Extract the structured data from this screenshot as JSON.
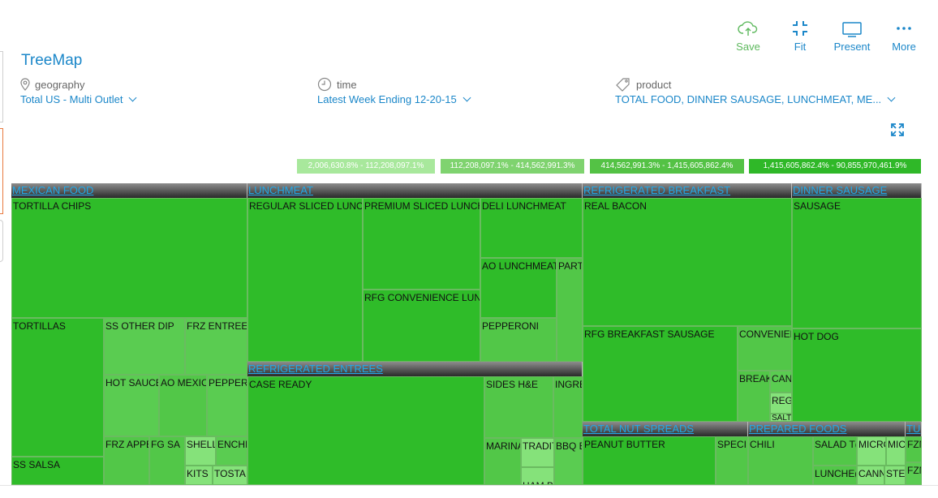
{
  "toolbar": {
    "save_label": "Save",
    "fit_label": "Fit",
    "present_label": "Present",
    "more_label": "More"
  },
  "page": {
    "title": "TreeMap"
  },
  "filters": {
    "geography": {
      "label": "geography",
      "value": "Total US - Multi Outlet",
      "icon": "location-pin-icon"
    },
    "time": {
      "label": "time",
      "value": "Latest Week Ending 12-20-15",
      "icon": "clock-icon"
    },
    "product": {
      "label": "product",
      "value": "TOTAL FOOD, DINNER SAUSAGE, LUNCHMEAT, ME...",
      "icon": "tag-icon"
    }
  },
  "legend": [
    {
      "label": "2,006,630.8% - 112,208,097.1%",
      "color": "#a8e89c"
    },
    {
      "label": "112,208,097.1% - 414,562,991.3%",
      "color": "#7fd36f"
    },
    {
      "label": "414,562,991.3% - 1,415,605,862.4%",
      "color": "#54c245"
    },
    {
      "label": "1,415,605,862.4% - 90,855,970,461.9%",
      "color": "#2fb828"
    }
  ],
  "colors": {
    "accent": "#1b87c9",
    "save": "#5cb85c",
    "shade_1": "#2fbc29",
    "shade_2": "#5acc51",
    "shade_3": "#52c748",
    "shade_4": "#85e27a"
  },
  "treemap": {
    "groups": {
      "mexican": "MEXICAN FOOD",
      "lunchmeat": "LUNCHMEAT",
      "breakfast": "REFRIGERATED BREAKFAST",
      "sausage": "DINNER SAUSAGE",
      "entrees": "REFRIGERATED ENTREES",
      "nut": "TOTAL NUT SPREADS",
      "prepared": "PREPARED FOODS",
      "tu": "TU"
    },
    "cells": {
      "tortilla_chips": "TORTILLA CHIPS",
      "tortillas": "TORTILLAS",
      "ss_salsa": "SS SALSA",
      "ss_other_dip": "SS OTHER DIP",
      "frz_entree": "FRZ ENTREE/I",
      "hot_sauce": "HOT SAUCE",
      "ao_mexic": "AO MEXIC",
      "peppers": "PEPPERS",
      "frz_apper": "FRZ APPER",
      "fg_sa": "FG SA",
      "shell": "SHELL",
      "enchi": "ENCHI",
      "kits": "KITS",
      "tostal": "TOSTAI",
      "regular_sliced": "REGULAR SLICED LUNCH",
      "premium_sliced": "PREMIUM SLICED LUNCH",
      "rfg_convenience": "RFG CONVENIENCE LUNC",
      "deli_lunchmeat": "DELI LUNCHMEAT",
      "ao_lunchmeat": "AO LUNCHMEAT",
      "part": "PART",
      "pepperoni": "PEPPERONI",
      "case_ready": "CASE READY",
      "sides_he": "SIDES H&E",
      "ingre": "INGRE",
      "marina": "MARINA",
      "tradit": "TRADIT",
      "bbq_e": "BBQ E",
      "ham_bbq": "HAM BBQ PIE",
      "real_bacon": "REAL BACON",
      "rfg_breakfast_sausage": "RFG BREAKFAST SAUSAGE",
      "convenien": "CONVENIEN",
      "breaki": "BREAKI",
      "can": "CAN",
      "regu": "REGU",
      "salt": "SALT",
      "sausage": "SAUSAGE",
      "hot_dog": "HOT DOG",
      "peanut_butter": "PEANUT BUTTER",
      "speci": "SPECI",
      "chili": "CHILI",
      "salad": "SALAD T(",
      "micro1": "MICRO",
      "micro2": "MICI",
      "lunche": "LUNCHE(",
      "cann": "CANN",
      "stew": "STEW",
      "fzn1": "FZN",
      "fzn2": "FZN"
    }
  }
}
